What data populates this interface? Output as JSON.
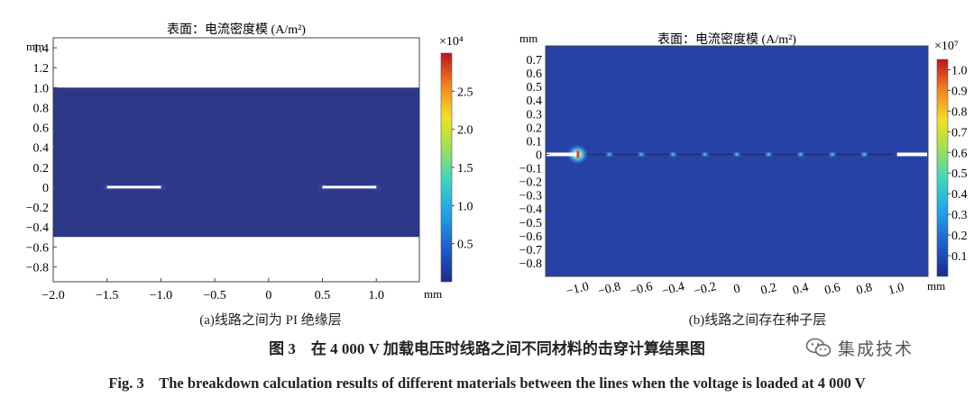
{
  "chart_data": [
    {
      "type": "heatmap",
      "panel": "a",
      "title": "表面：电流密度模 (A/m²)",
      "xunit": "mm",
      "yunit": "mm",
      "xlim": [
        -2.0,
        1.4
      ],
      "ylim": [
        -0.95,
        1.5
      ],
      "x_ticks": [
        "−2.0",
        "−1.5",
        "−1.0",
        "−0.5",
        "0",
        "0.5",
        "1.0"
      ],
      "y_ticks": [
        "1.4",
        "1.2",
        "1.0",
        "0.8",
        "0.6",
        "0.4",
        "0.2",
        "0",
        "−0.2",
        "−0.4",
        "−0.6",
        "−0.8"
      ],
      "colorbar": {
        "multiplier": "×10⁴",
        "min": 0,
        "max": 3.0,
        "ticks": [
          "2.5",
          "2.0",
          "1.5",
          "1.0",
          "0.5"
        ]
      },
      "domain": {
        "x": [
          -2.0,
          1.4
        ],
        "y": [
          -0.5,
          1.0
        ]
      },
      "electrodes": [
        {
          "x0": -1.5,
          "x1": -1.0,
          "y": 0
        },
        {
          "x0": 0.5,
          "x1": 1.0,
          "y": 0
        }
      ],
      "caption": "(a)线路之间为 PI 绝缘层"
    },
    {
      "type": "heatmap",
      "panel": "b",
      "title": "表面：电流密度模 (A/m²)",
      "xunit": "mm",
      "yunit": "mm",
      "xlim": [
        -1.2,
        1.2
      ],
      "ylim": [
        -0.9,
        0.8
      ],
      "x_ticks": [
        "−1.0",
        "−0.8",
        "−0.6",
        "−0.4",
        "−0.2",
        "0",
        "0.2",
        "0.4",
        "0.6",
        "0.8",
        "1.0"
      ],
      "y_ticks": [
        "0.7",
        "0.6",
        "0.5",
        "0.4",
        "0.3",
        "0.2",
        "0.1",
        "0",
        "−0.1",
        "−0.2",
        "−0.3",
        "−0.4",
        "−0.5",
        "−0.6",
        "−0.7",
        "−0.8"
      ],
      "colorbar": {
        "multiplier": "×10⁷",
        "min": 0,
        "max": 1.05,
        "ticks": [
          "1.0",
          "0.9",
          "0.8",
          "0.7",
          "0.6",
          "0.5",
          "0.4",
          "0.3",
          "0.2",
          "0.1"
        ]
      },
      "electrodes": [
        {
          "x0": -1.2,
          "x1": -1.0,
          "y": 0
        },
        {
          "x0": 1.0,
          "x1": 1.2,
          "y": 0
        }
      ],
      "hotspots_x": [
        -1.0,
        -0.8,
        -0.6,
        -0.4,
        -0.2,
        0,
        0.2,
        0.4,
        0.6,
        0.8
      ],
      "caption": "(b)线路之间存在种子层"
    }
  ],
  "figure_caption_cn": "图 3　在 4 000 V 加载电压时线路之间不同材料的击穿计算结果图",
  "figure_caption_en": "Fig. 3　The breakdown calculation results of different materials between the lines when the voltage is loaded at 4 000 V",
  "watermark": {
    "icon": "wechat-icon",
    "text": "集成技术"
  },
  "colors": {
    "field_a": "#2c3788",
    "field_b": "#2742a6",
    "electrode": "#ffffff"
  }
}
